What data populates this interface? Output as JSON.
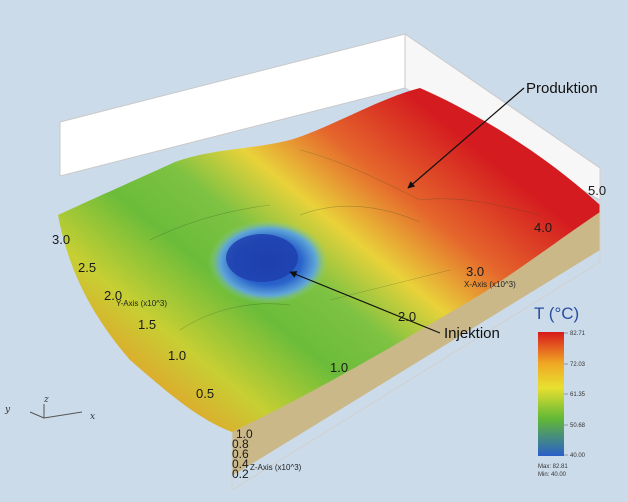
{
  "callouts": {
    "production": "Produktion",
    "injection": "Injektion"
  },
  "axes": {
    "x": {
      "title": "X-Axis (x10^3)",
      "ticks": [
        "1.0",
        "2.0",
        "3.0",
        "4.0",
        "5.0"
      ]
    },
    "y": {
      "title": "Y-Axis (x10^3)",
      "ticks": [
        "0.5",
        "1.0",
        "1.5",
        "2.0",
        "2.5",
        "3.0"
      ]
    },
    "z": {
      "title": "Z-Axis (x10^3)",
      "ticks": [
        "1.0",
        "0.8",
        "0.6",
        "0.4",
        "0.2"
      ]
    }
  },
  "orientation_triad": {
    "labels": [
      "y",
      "z",
      "x"
    ]
  },
  "legend": {
    "title": "T (°C)",
    "ticks": [
      "82.71",
      "72.03",
      "61.35",
      "50.68",
      "40.00"
    ],
    "max_label": "Max: 82.81",
    "min_label": "Min: 40.00",
    "colors": [
      "#d7191c",
      "#f0a623",
      "#e8e030",
      "#62b836",
      "#2a5fc8"
    ]
  }
}
